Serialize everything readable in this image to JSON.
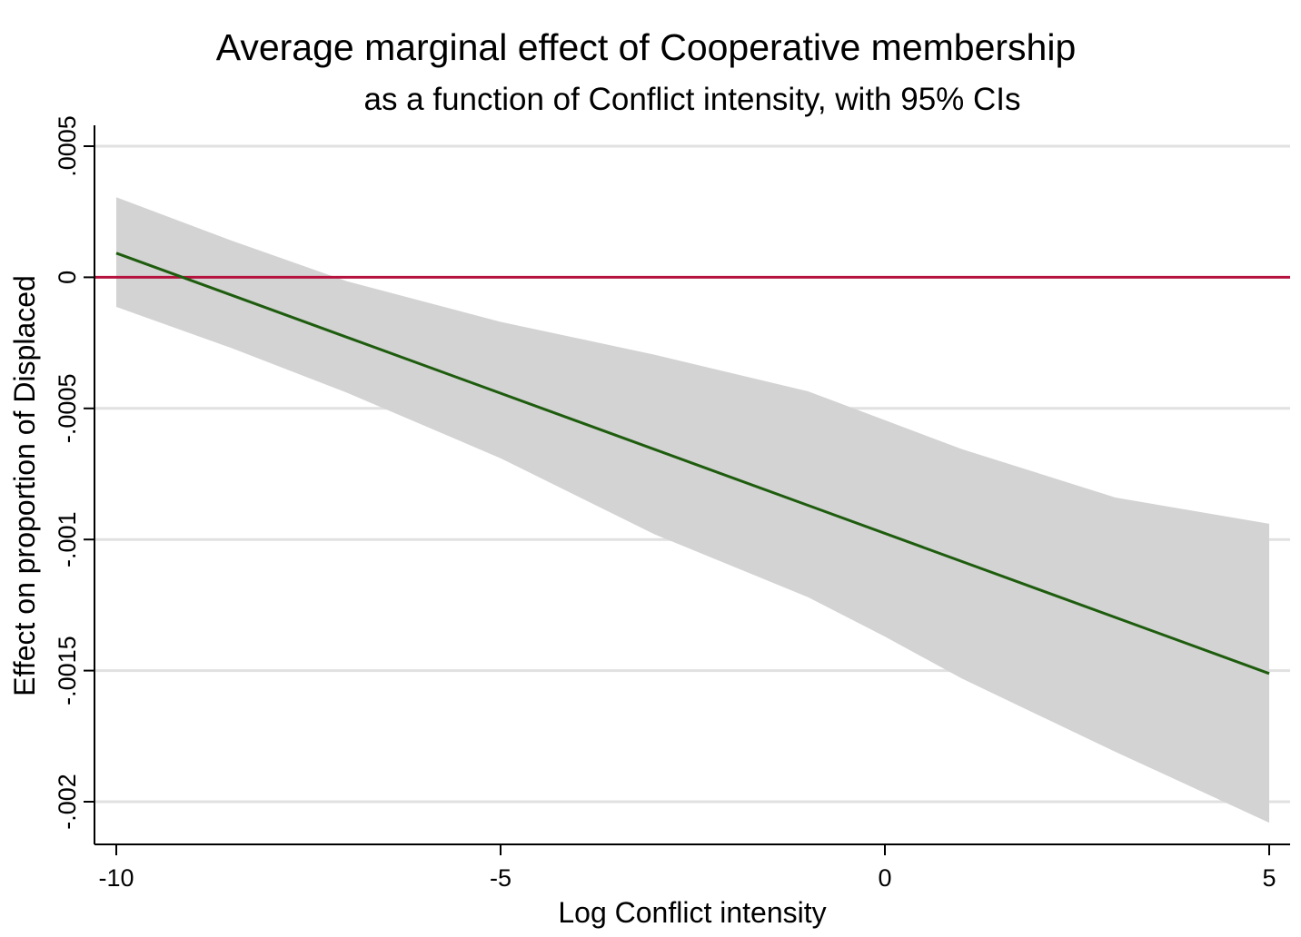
{
  "chart_data": {
    "type": "line",
    "title": "Average marginal effect of Cooperative membership",
    "subtitle": "as a function of Conflict intensity, with 95% CIs",
    "xlabel": "Log Conflict intensity",
    "ylabel": "Effect on proportion of Displaced",
    "xlim": [
      -10,
      5
    ],
    "ylim": [
      -0.002,
      0.0005
    ],
    "x_ticks": [
      {
        "value": -10,
        "label": "-10"
      },
      {
        "value": -5,
        "label": "-5"
      },
      {
        "value": 0,
        "label": "0"
      },
      {
        "value": 5,
        "label": "5"
      }
    ],
    "y_ticks": [
      {
        "value": 0.0005,
        "label": ".0005"
      },
      {
        "value": 0,
        "label": "0"
      },
      {
        "value": -0.0005,
        "label": "-.0005"
      },
      {
        "value": -0.001,
        "label": "-.001"
      },
      {
        "value": -0.0015,
        "label": "-.0015"
      },
      {
        "value": -0.002,
        "label": "-.002"
      }
    ],
    "grid": "horizontal",
    "reference_line": {
      "y": 0,
      "color": "#b5123e"
    },
    "series": [
      {
        "type": "line",
        "color": "#1e5c0e",
        "x": [
          -10,
          5
        ],
        "y": [
          9.2e-05,
          -0.001511
        ]
      }
    ],
    "ci_band": {
      "color": "#d3d3d3",
      "x": [
        -10,
        -8.5,
        -7,
        -5,
        -3,
        -1,
        0,
        1,
        3,
        5
      ],
      "upper": [
        0.000305,
        0.00014,
        -1.5e-05,
        -0.00017,
        -0.000295,
        -0.000435,
        -0.000545,
        -0.000655,
        -0.00084,
        -0.00094
      ],
      "lower": [
        -0.000113,
        -0.00027,
        -0.00044,
        -0.00069,
        -0.00098,
        -0.00122,
        -0.00137,
        -0.00153,
        -0.00181,
        -0.00208
      ]
    }
  }
}
